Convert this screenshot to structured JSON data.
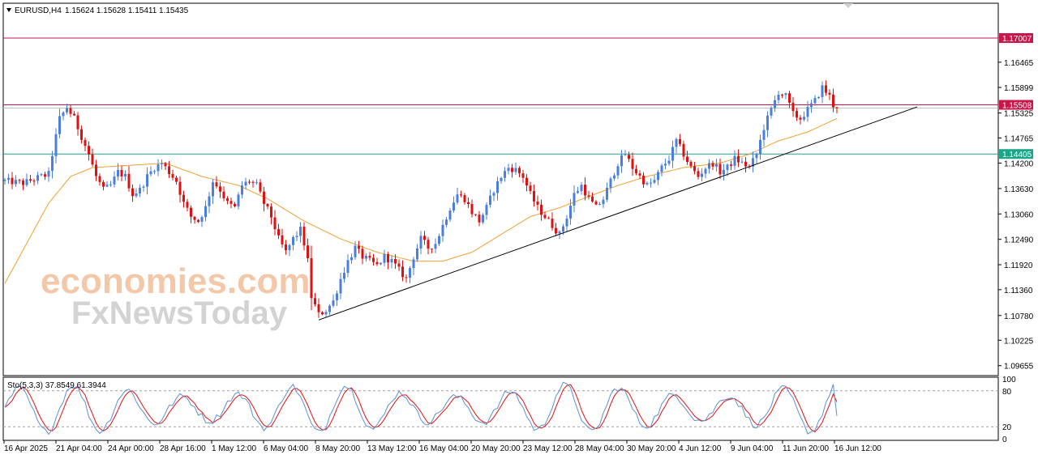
{
  "header": {
    "symbol": "EURUSD,H4",
    "ohlc": "1.15624 1.15628 1.15411 1.15435"
  },
  "watermark": {
    "line1": "economies.com",
    "line2": "FxNewsToday"
  },
  "colors": {
    "bull": "#4a7ee0",
    "bear": "#e01010",
    "ma": "#f0a030",
    "trend": "#000000",
    "resistance": "#c8164b",
    "current": "#c8164b",
    "support": "#1aa589",
    "stoch_main": "#5b8fd8",
    "stoch_signal": "#e01010"
  },
  "chart_data": [
    {
      "type": "candlestick",
      "title": "EURUSD,H4",
      "ohlc_header": [
        1.15624,
        1.15628,
        1.15411,
        1.15435
      ],
      "ylim": [
        1.0945,
        1.1777
      ],
      "y_ticks": [
        "1.16465",
        "1.15899",
        "1.15325",
        "1.14765",
        "1.14200",
        "1.13630",
        "1.13060",
        "1.12490",
        "1.11920",
        "1.11360",
        "1.10780",
        "1.10225",
        "1.09655"
      ],
      "x_tick_labels": [
        "16 Apr 2025",
        "21 Apr 04:00",
        "24 Apr 00:00",
        "28 Apr 16:00",
        "1 May 12:00",
        "6 May 04:00",
        "8 May 20:00",
        "13 May 12:00",
        "16 May 04:00",
        "20 May 20:00",
        "23 May 12:00",
        "28 May 04:00",
        "30 May 20:00",
        "4 Jun 12:00",
        "9 Jun 04:00",
        "11 Jun 20:00",
        "16 Jun 12:00"
      ],
      "price_path": [
        [
          0,
          1.138
        ],
        [
          5,
          1.1375
        ],
        [
          10,
          1.139
        ],
        [
          12,
          1.1395
        ],
        [
          13,
          1.144
        ],
        [
          15,
          1.152
        ],
        [
          17,
          1.1545
        ],
        [
          19,
          1.152
        ],
        [
          21,
          1.148
        ],
        [
          23,
          1.144
        ],
        [
          25,
          1.139
        ],
        [
          27,
          1.136
        ],
        [
          29,
          1.137
        ],
        [
          31,
          1.14
        ],
        [
          33,
          1.139
        ],
        [
          35,
          1.135
        ],
        [
          37,
          1.136
        ],
        [
          39,
          1.139
        ],
        [
          41,
          1.141
        ],
        [
          43,
          1.142
        ],
        [
          45,
          1.14
        ],
        [
          47,
          1.138
        ],
        [
          49,
          1.133
        ],
        [
          51,
          1.13
        ],
        [
          53,
          1.129
        ],
        [
          55,
          1.132
        ],
        [
          57,
          1.138
        ],
        [
          59,
          1.136
        ],
        [
          61,
          1.133
        ],
        [
          63,
          1.132
        ],
        [
          65,
          1.137
        ],
        [
          67,
          1.138
        ],
        [
          69,
          1.137
        ],
        [
          71,
          1.133
        ],
        [
          73,
          1.13
        ],
        [
          75,
          1.125
        ],
        [
          77,
          1.122
        ],
        [
          79,
          1.125
        ],
        [
          81,
          1.127
        ],
        [
          82,
          1.124
        ],
        [
          83,
          1.12
        ],
        [
          84,
          1.112
        ],
        [
          86,
          1.108
        ],
        [
          88,
          1.109
        ],
        [
          90,
          1.111
        ],
        [
          92,
          1.116
        ],
        [
          94,
          1.12
        ],
        [
          96,
          1.123
        ],
        [
          98,
          1.121
        ],
        [
          100,
          1.12
        ],
        [
          102,
          1.119
        ],
        [
          104,
          1.121
        ],
        [
          106,
          1.12
        ],
        [
          108,
          1.118
        ],
        [
          110,
          1.116
        ],
        [
          112,
          1.121
        ],
        [
          114,
          1.125
        ],
        [
          116,
          1.123
        ],
        [
          118,
          1.124
        ],
        [
          120,
          1.128
        ],
        [
          122,
          1.132
        ],
        [
          124,
          1.135
        ],
        [
          126,
          1.134
        ],
        [
          128,
          1.131
        ],
        [
          130,
          1.129
        ],
        [
          132,
          1.132
        ],
        [
          134,
          1.136
        ],
        [
          136,
          1.139
        ],
        [
          138,
          1.141
        ],
        [
          140,
          1.1405
        ],
        [
          142,
          1.139
        ],
        [
          144,
          1.135
        ],
        [
          146,
          1.132
        ],
        [
          148,
          1.13
        ],
        [
          150,
          1.128
        ],
        [
          152,
          1.126
        ],
        [
          154,
          1.13
        ],
        [
          156,
          1.135
        ],
        [
          158,
          1.137
        ],
        [
          160,
          1.134
        ],
        [
          162,
          1.132
        ],
        [
          164,
          1.134
        ],
        [
          166,
          1.138
        ],
        [
          168,
          1.142
        ],
        [
          170,
          1.144
        ],
        [
          172,
          1.141
        ],
        [
          174,
          1.139
        ],
        [
          176,
          1.137
        ],
        [
          178,
          1.138
        ],
        [
          180,
          1.141
        ],
        [
          182,
          1.143
        ],
        [
          184,
          1.147
        ],
        [
          186,
          1.144
        ],
        [
          188,
          1.141
        ],
        [
          190,
          1.139
        ],
        [
          192,
          1.141
        ],
        [
          194,
          1.142
        ],
        [
          196,
          1.14
        ],
        [
          198,
          1.141
        ],
        [
          200,
          1.143
        ],
        [
          202,
          1.142
        ],
        [
          204,
          1.141
        ],
        [
          206,
          1.144
        ],
        [
          208,
          1.15
        ],
        [
          210,
          1.154
        ],
        [
          212,
          1.158
        ],
        [
          214,
          1.157
        ],
        [
          216,
          1.153
        ],
        [
          218,
          1.152
        ],
        [
          220,
          1.154
        ],
        [
          222,
          1.156
        ],
        [
          224,
          1.159
        ],
        [
          226,
          1.157
        ],
        [
          227,
          1.155
        ],
        [
          228,
          1.1544
        ]
      ],
      "moving_average_path": [
        [
          0,
          1.115
        ],
        [
          6,
          1.124
        ],
        [
          12,
          1.133
        ],
        [
          18,
          1.139
        ],
        [
          24,
          1.141
        ],
        [
          34,
          1.1415
        ],
        [
          44,
          1.142
        ],
        [
          54,
          1.139
        ],
        [
          64,
          1.137
        ],
        [
          72,
          1.134
        ],
        [
          82,
          1.129
        ],
        [
          92,
          1.125
        ],
        [
          102,
          1.122
        ],
        [
          112,
          1.12
        ],
        [
          120,
          1.12
        ],
        [
          128,
          1.122
        ],
        [
          136,
          1.126
        ],
        [
          144,
          1.13
        ],
        [
          152,
          1.132
        ],
        [
          160,
          1.1345
        ],
        [
          168,
          1.137
        ],
        [
          176,
          1.139
        ],
        [
          186,
          1.141
        ],
        [
          196,
          1.142
        ],
        [
          204,
          1.144
        ],
        [
          212,
          1.147
        ],
        [
          220,
          1.149
        ],
        [
          228,
          1.152
        ]
      ],
      "trendline": {
        "from": [
          86,
          1.1068
        ],
        "to": [
          228,
          1.1482
        ]
      },
      "levels": [
        {
          "name": "resistance",
          "value": "1.17007"
        },
        {
          "name": "current",
          "value": "1.15508"
        },
        {
          "name": "support",
          "value": "1.14405"
        }
      ]
    },
    {
      "type": "line",
      "title": "Sto(5,3,3) 37.8549 61.3944",
      "ylim": [
        0,
        100
      ],
      "y_ticks": [
        "100",
        "80",
        "20",
        "0"
      ],
      "levels": [
        80,
        20
      ],
      "series": [
        {
          "name": "main",
          "value": 37.8549
        },
        {
          "name": "signal",
          "value": 61.3944
        }
      ]
    }
  ]
}
